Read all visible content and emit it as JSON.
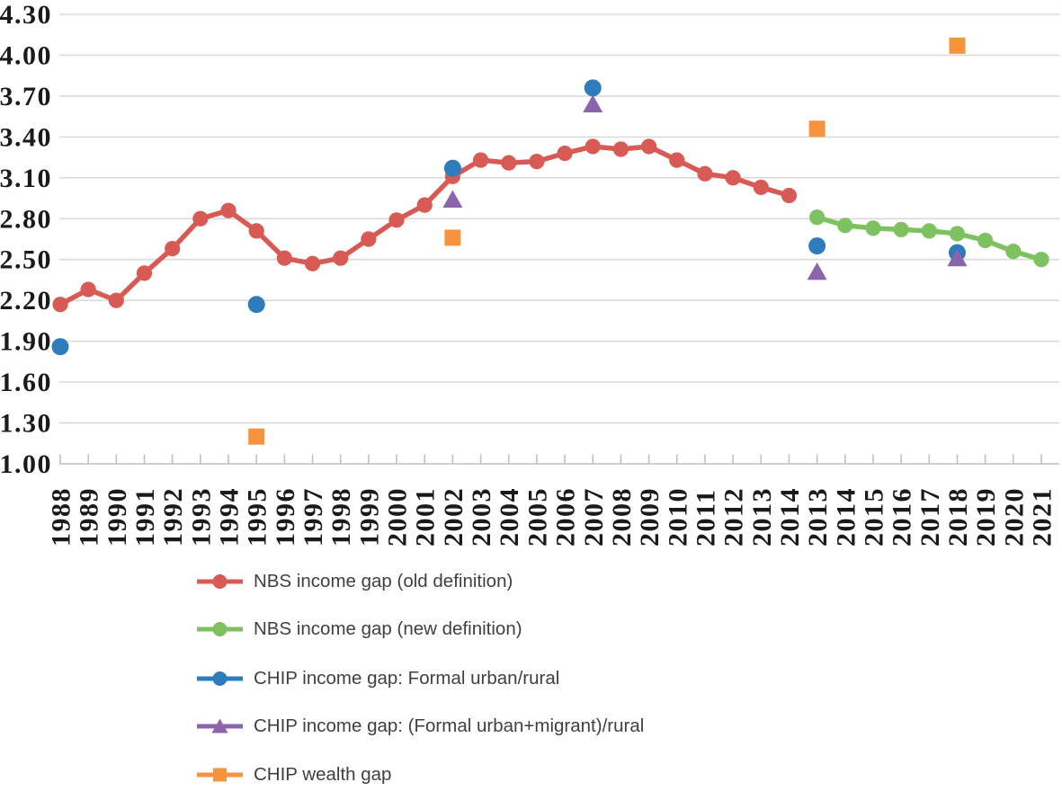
{
  "chart_data": {
    "type": "line",
    "title": "",
    "xlabel": "",
    "ylabel": "",
    "grid": "horizontal",
    "legend_position": "bottom-left",
    "categories": [
      "1988",
      "1989",
      "1990",
      "1991",
      "1992",
      "1993",
      "1994",
      "1995",
      "1996",
      "1997",
      "1998",
      "1999",
      "2000",
      "2001",
      "2002",
      "2003",
      "2004",
      "2005",
      "2006",
      "2007",
      "2008",
      "2009",
      "2010",
      "2011",
      "2012",
      "2013",
      "2014",
      "2013",
      "2014",
      "2015",
      "2016",
      "2017",
      "2018",
      "2019",
      "2020",
      "2021"
    ],
    "y_axis": {
      "min": 1.0,
      "max": 4.3,
      "step": 0.3,
      "tick_labels": [
        "1.00",
        "1.30",
        "1.60",
        "1.90",
        "2.20",
        "2.50",
        "2.80",
        "3.10",
        "3.40",
        "3.70",
        "4.00",
        "4.30"
      ]
    },
    "series": [
      {
        "name": "NBS income gap (old definition)",
        "draw": "line+markers",
        "marker": "circle",
        "color": "#D85A54",
        "points": [
          [
            0,
            2.17
          ],
          [
            1,
            2.28
          ],
          [
            2,
            2.2
          ],
          [
            3,
            2.4
          ],
          [
            4,
            2.58
          ],
          [
            5,
            2.8
          ],
          [
            6,
            2.86
          ],
          [
            7,
            2.71
          ],
          [
            8,
            2.51
          ],
          [
            9,
            2.47
          ],
          [
            10,
            2.51
          ],
          [
            11,
            2.65
          ],
          [
            12,
            2.79
          ],
          [
            13,
            2.9
          ],
          [
            14,
            3.11
          ],
          [
            15,
            3.23
          ],
          [
            16,
            3.21
          ],
          [
            17,
            3.22
          ],
          [
            18,
            3.28
          ],
          [
            19,
            3.33
          ],
          [
            20,
            3.31
          ],
          [
            21,
            3.33
          ],
          [
            22,
            3.23
          ],
          [
            23,
            3.13
          ],
          [
            24,
            3.1
          ],
          [
            25,
            3.03
          ],
          [
            26,
            2.97
          ]
        ]
      },
      {
        "name": "NBS income gap (new definition)",
        "draw": "line+markers",
        "marker": "circle",
        "color": "#7EC161",
        "points": [
          [
            27,
            2.81
          ],
          [
            28,
            2.75
          ],
          [
            29,
            2.73
          ],
          [
            30,
            2.72
          ],
          [
            31,
            2.71
          ],
          [
            32,
            2.69
          ],
          [
            33,
            2.64
          ],
          [
            34,
            2.56
          ],
          [
            35,
            2.5
          ]
        ]
      },
      {
        "name": "CHIP income gap: Formal urban/rural",
        "draw": "markers",
        "marker": "circle",
        "color": "#2E7CBC",
        "points": [
          [
            0,
            1.86
          ],
          [
            7,
            2.17
          ],
          [
            14,
            3.17
          ],
          [
            19,
            3.76
          ],
          [
            27,
            2.6
          ],
          [
            32,
            2.55
          ]
        ]
      },
      {
        "name": "CHIP income gap: (Formal urban+migrant)/rural",
        "draw": "markers",
        "marker": "triangle",
        "color": "#8C64AC",
        "points": [
          [
            14,
            2.94
          ],
          [
            19,
            3.64
          ],
          [
            27,
            2.41
          ],
          [
            32,
            2.51
          ]
        ]
      },
      {
        "name": "CHIP wealth gap",
        "draw": "markers",
        "marker": "square",
        "color": "#F6933F",
        "points": [
          [
            7,
            1.2
          ],
          [
            14,
            2.66
          ],
          [
            27,
            3.46
          ],
          [
            32,
            4.07
          ]
        ]
      }
    ],
    "colors": {
      "gridline": "#DADADA",
      "axis_line": "#C0C0C0",
      "axis_text": "#1A1A1A",
      "legend_text": "#3F3F3F"
    }
  }
}
